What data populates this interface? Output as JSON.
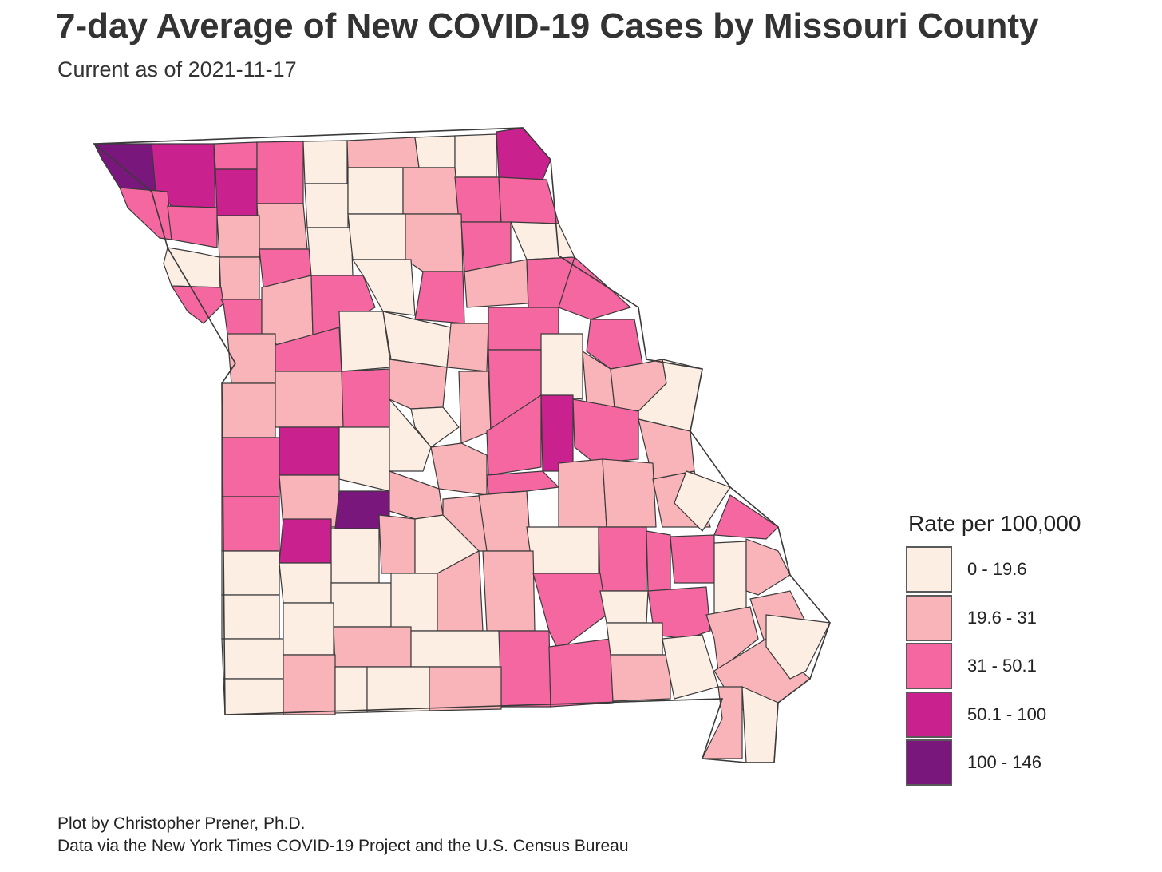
{
  "title": "7-day Average of New COVID-19 Cases by Missouri County",
  "subtitle": "Current as of 2021-11-17",
  "legend": {
    "title": "Rate per 100,000",
    "classes": [
      {
        "label": "0 - 19.6",
        "color": "#fdeee4"
      },
      {
        "label": "19.6 - 31",
        "color": "#f8b4b9"
      },
      {
        "label": "31 - 50.1",
        "color": "#f467a1"
      },
      {
        "label": "50.1 - 100",
        "color": "#c9218e"
      },
      {
        "label": "100 - 146",
        "color": "#7a177c"
      }
    ]
  },
  "caption": {
    "line1": "Plot by Christopher Prener, Ph.D.",
    "line2": "Data via the New York Times COVID-19 Project and the U.S. Census Bureau"
  }
}
